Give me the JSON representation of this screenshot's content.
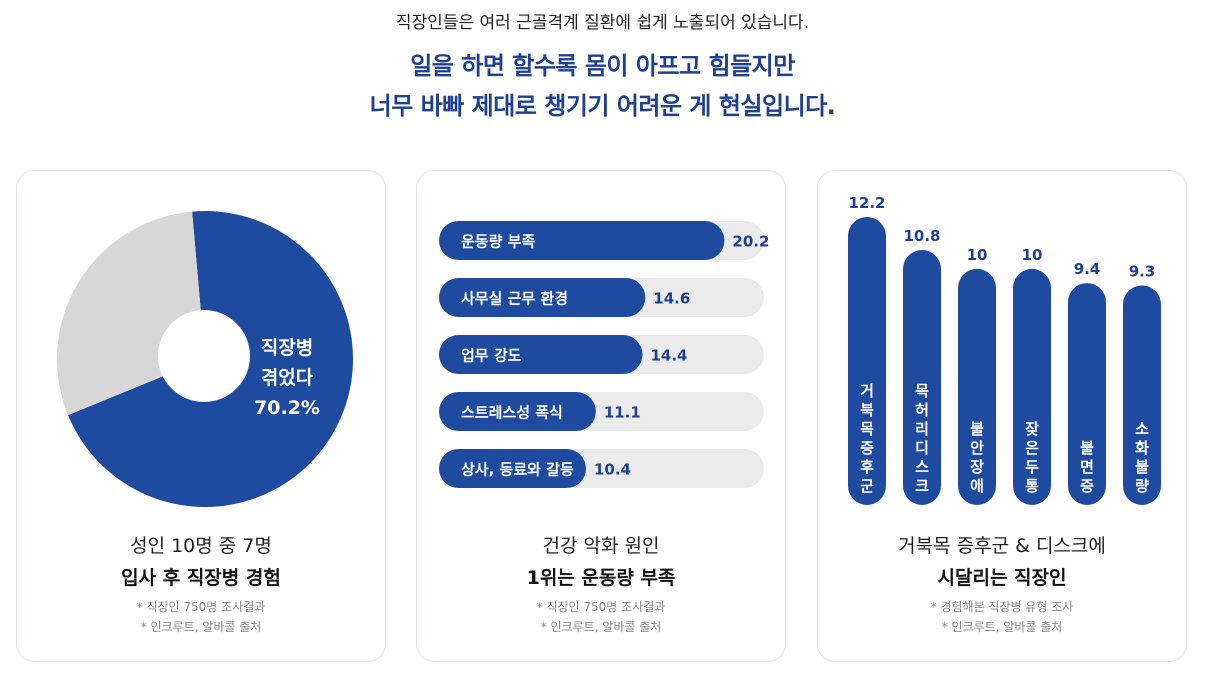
{
  "header": {
    "subtitle": "직장인들은 여러 근골격계 질환에 쉽게 노출되어 있습니다.",
    "headline_line1": "일을 하면 할수록 몸이 아프고 힘들지만",
    "headline_line2": "너무 바빠 제대로 챙기기 어려운 게 현실입니다."
  },
  "colors": {
    "primary": "#1e4ba0",
    "light": "#d7d7d7",
    "track": "#ebebeb",
    "headline": "#1f3f93"
  },
  "card1": {
    "caption_line1": "성인 10명 중 7명",
    "caption_line2": "입사 후 직장병 경험",
    "note1": "* 직장인 750명 조사결과",
    "note2": "* 인크루트, 알바콜 출처",
    "pie_label_line1": "직장병",
    "pie_label_line2": "겪었다",
    "pie_label_value": "70.2%"
  },
  "card2": {
    "caption_line1": "건강 악화 원인",
    "caption_line2": "1위는 운동량 부족",
    "note1": "* 직장인 750명 조사결과",
    "note2": "* 인크루트, 알바콜 출처"
  },
  "card3": {
    "caption_line1": "거북목 증후군 & 디스크에",
    "caption_line2": "시달리는 직장인",
    "note1": "* 경험해본 직장병 유형 조사",
    "note2": "* 인크루트, 알바콜 출처"
  },
  "chart_data": [
    {
      "type": "pie",
      "title": "",
      "categories": [
        "직장병 겪었다",
        ""
      ],
      "values": [
        70.2,
        29.8
      ],
      "donut": true
    },
    {
      "type": "bar",
      "orientation": "horizontal",
      "title": "",
      "categories": [
        "운동량 부족",
        "사무실 근무 환경",
        "업무 강도",
        "스트레스성 폭식",
        "상사, 동료와 갈등"
      ],
      "values": [
        20.2,
        14.6,
        14.4,
        11.1,
        10.4
      ],
      "value_labels": [
        "20.2",
        "14.6",
        "14.4",
        "11.1",
        "10.4"
      ],
      "xlim": [
        0,
        23
      ]
    },
    {
      "type": "bar",
      "orientation": "vertical",
      "title": "",
      "categories": [
        "거북목증후군",
        "목허리디스크",
        "불안장애",
        "잦은두통",
        "불면증",
        "소화불량"
      ],
      "values": [
        12.2,
        10.8,
        10,
        10,
        9.4,
        9.3
      ],
      "value_labels": [
        "12.2",
        "10.8",
        "10",
        "10",
        "9.4",
        "9.3"
      ]
    }
  ]
}
